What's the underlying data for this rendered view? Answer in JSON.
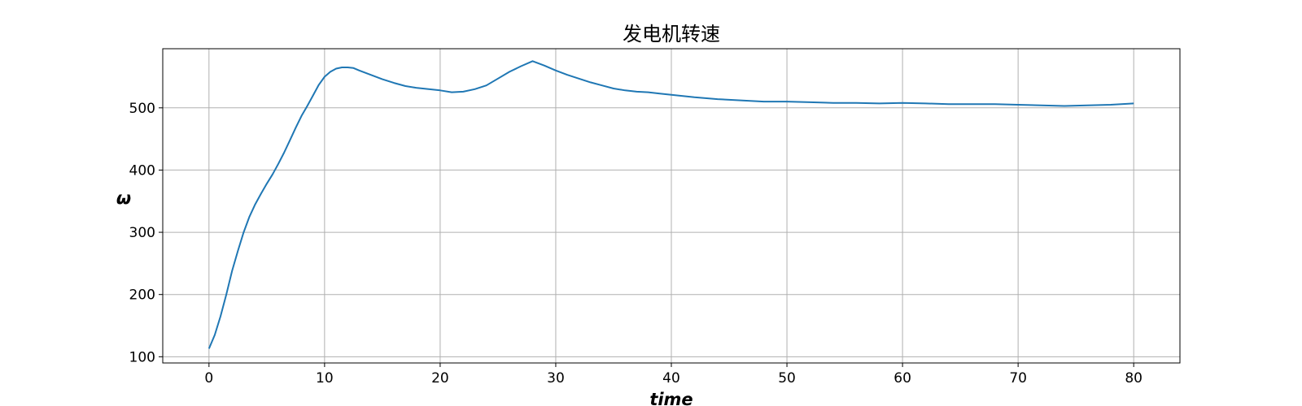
{
  "chart_data": {
    "type": "line",
    "title": "发电机转速",
    "xlabel": "time",
    "ylabel": "ω",
    "xlim": [
      -4,
      84
    ],
    "ylim": [
      90,
      595
    ],
    "grid": true,
    "x_ticks": [
      0,
      10,
      20,
      30,
      40,
      50,
      60,
      70,
      80
    ],
    "y_ticks": [
      100,
      200,
      300,
      400,
      500
    ],
    "x_tick_labels": [
      "0",
      "10",
      "20",
      "30",
      "40",
      "50",
      "60",
      "70",
      "80"
    ],
    "y_tick_labels": [
      "100",
      "200",
      "300",
      "400",
      "500"
    ],
    "series": [
      {
        "color": "#1f77b4",
        "x": [
          0,
          0.5,
          1,
          1.5,
          2,
          2.5,
          3,
          3.5,
          4,
          4.5,
          5,
          5.5,
          6,
          6.5,
          7,
          7.5,
          8,
          8.5,
          9,
          9.5,
          10,
          10.5,
          11,
          11.5,
          12,
          12.5,
          13,
          14,
          15,
          16,
          17,
          18,
          19,
          20,
          21,
          22,
          23,
          24,
          25,
          26,
          27,
          28,
          29,
          30,
          31,
          32,
          33,
          34,
          35,
          36,
          37,
          38,
          39,
          40,
          42,
          44,
          46,
          48,
          50,
          52,
          54,
          56,
          58,
          60,
          62,
          64,
          66,
          68,
          70,
          72,
          74,
          76,
          78,
          80
        ],
        "y": [
          113,
          135,
          165,
          200,
          238,
          270,
          300,
          325,
          345,
          362,
          378,
          393,
          410,
          428,
          448,
          468,
          487,
          503,
          520,
          537,
          550,
          558,
          563,
          565,
          565,
          564,
          560,
          553,
          546,
          540,
          535,
          532,
          530,
          528,
          525,
          526,
          530,
          536,
          547,
          558,
          567,
          575,
          568,
          560,
          553,
          547,
          541,
          536,
          531,
          528,
          526,
          525,
          523,
          521,
          517,
          514,
          512,
          510,
          510,
          509,
          508,
          508,
          507,
          508,
          507,
          506,
          506,
          506,
          505,
          504,
          503,
          504,
          505,
          507
        ]
      }
    ]
  }
}
